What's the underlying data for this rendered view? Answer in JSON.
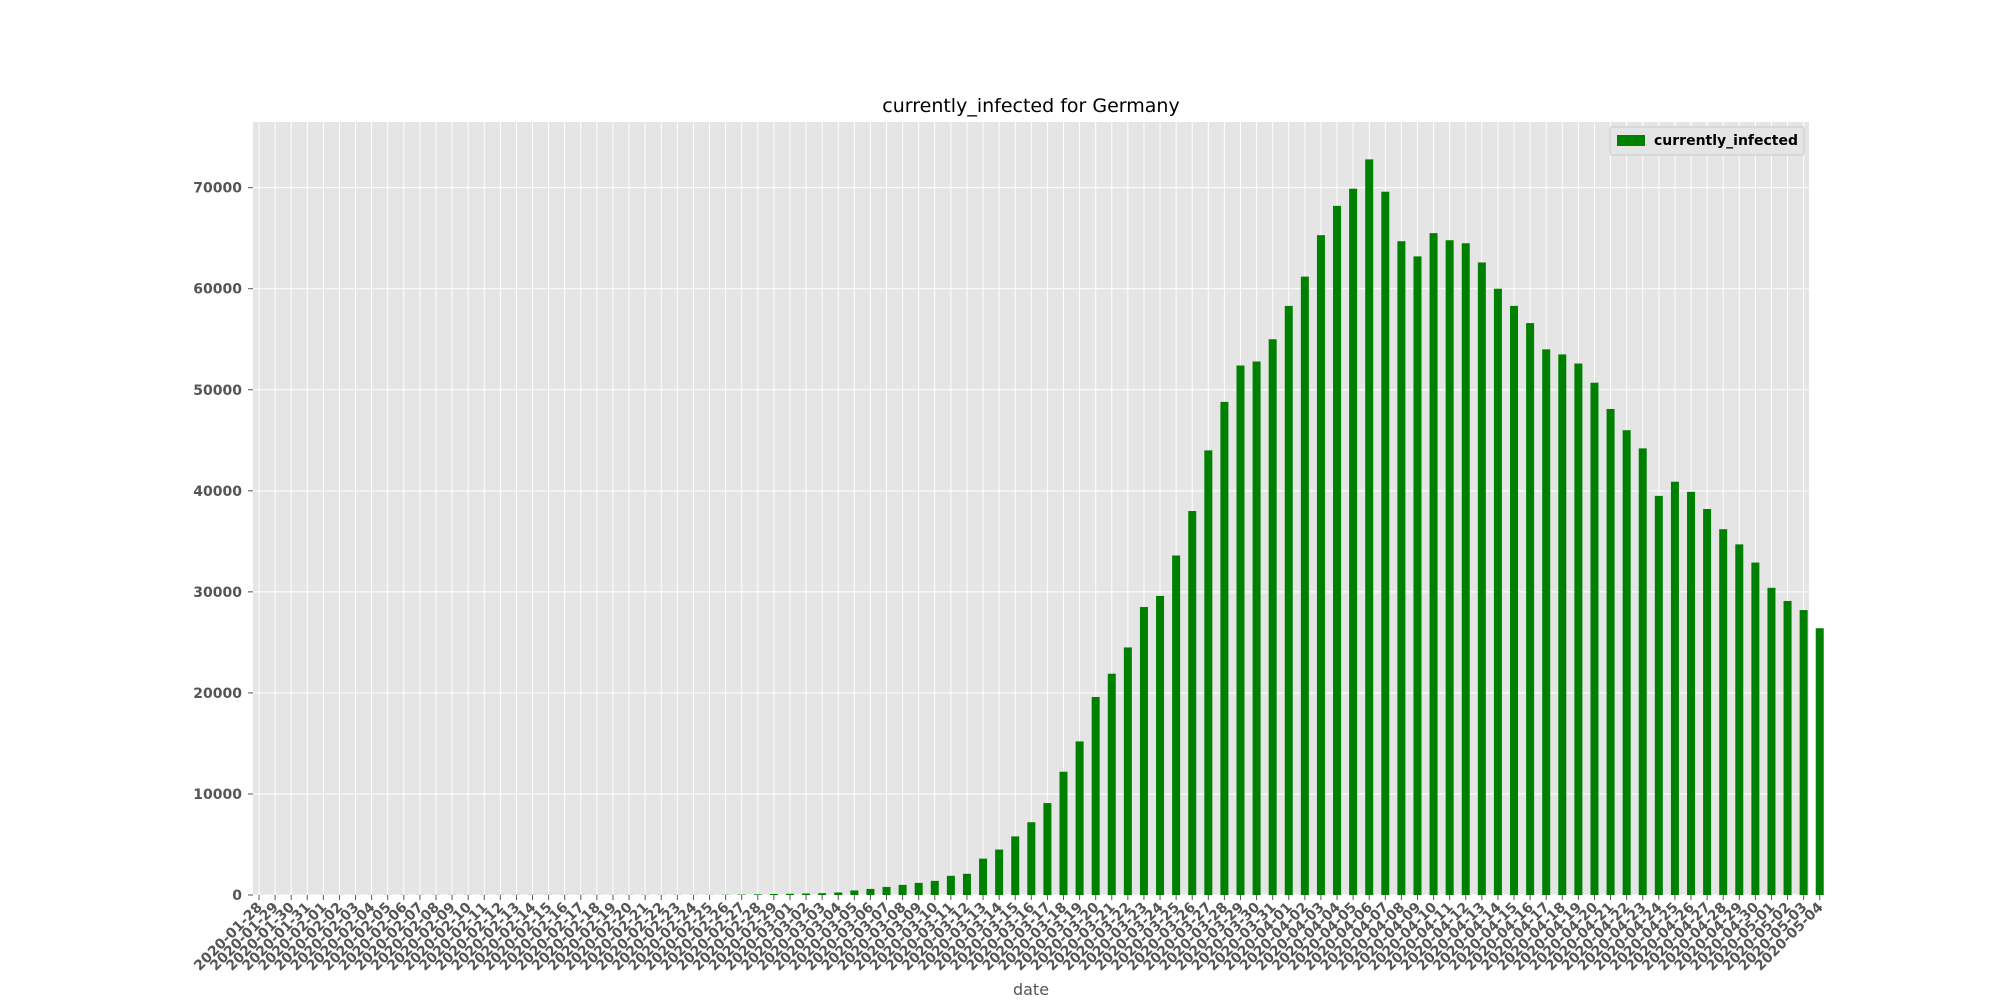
{
  "chart_data": {
    "type": "bar",
    "title": "currently_infected for Germany",
    "xlabel": "date",
    "ylabel": "",
    "ylim": [
      0,
      76500
    ],
    "yticks": [
      0,
      10000,
      20000,
      30000,
      40000,
      50000,
      60000,
      70000
    ],
    "grid": true,
    "legend_position": "top-right",
    "categories": [
      "2020-01-28",
      "2020-01-29",
      "2020-01-30",
      "2020-01-31",
      "2020-02-01",
      "2020-02-02",
      "2020-02-03",
      "2020-02-04",
      "2020-02-05",
      "2020-02-06",
      "2020-02-07",
      "2020-02-08",
      "2020-02-09",
      "2020-02-10",
      "2020-02-11",
      "2020-02-12",
      "2020-02-13",
      "2020-02-14",
      "2020-02-15",
      "2020-02-16",
      "2020-02-17",
      "2020-02-18",
      "2020-02-19",
      "2020-02-20",
      "2020-02-21",
      "2020-02-22",
      "2020-02-23",
      "2020-02-24",
      "2020-02-25",
      "2020-02-26",
      "2020-02-27",
      "2020-02-28",
      "2020-02-29",
      "2020-03-01",
      "2020-03-02",
      "2020-03-03",
      "2020-03-04",
      "2020-03-05",
      "2020-03-06",
      "2020-03-07",
      "2020-03-08",
      "2020-03-09",
      "2020-03-10",
      "2020-03-11",
      "2020-03-12",
      "2020-03-13",
      "2020-03-14",
      "2020-03-15",
      "2020-03-16",
      "2020-03-17",
      "2020-03-18",
      "2020-03-19",
      "2020-03-20",
      "2020-03-21",
      "2020-03-22",
      "2020-03-23",
      "2020-03-24",
      "2020-03-25",
      "2020-03-26",
      "2020-03-27",
      "2020-03-28",
      "2020-03-29",
      "2020-03-30",
      "2020-03-31",
      "2020-04-01",
      "2020-04-02",
      "2020-04-03",
      "2020-04-04",
      "2020-04-05",
      "2020-04-06",
      "2020-04-07",
      "2020-04-08",
      "2020-04-09",
      "2020-04-10",
      "2020-04-11",
      "2020-04-12",
      "2020-04-13",
      "2020-04-14",
      "2020-04-15",
      "2020-04-16",
      "2020-04-17",
      "2020-04-18",
      "2020-04-19",
      "2020-04-20",
      "2020-04-21",
      "2020-04-22",
      "2020-04-23",
      "2020-04-24",
      "2020-04-25",
      "2020-04-26",
      "2020-04-27",
      "2020-04-28",
      "2020-04-29",
      "2020-04-30",
      "2020-05-01",
      "2020-05-02",
      "2020-05-03",
      "2020-05-04"
    ],
    "series": [
      {
        "name": "currently_infected",
        "color": "#008000",
        "values": [
          4,
          4,
          4,
          5,
          7,
          8,
          10,
          12,
          12,
          12,
          13,
          13,
          14,
          14,
          14,
          15,
          15,
          15,
          15,
          15,
          15,
          15,
          15,
          15,
          15,
          15,
          15,
          14,
          15,
          25,
          40,
          60,
          100,
          120,
          150,
          180,
          250,
          450,
          600,
          800,
          1000,
          1200,
          1400,
          1900,
          2100,
          3600,
          4500,
          5800,
          7200,
          9100,
          12200,
          15200,
          19600,
          21900,
          24500,
          28500,
          29600,
          33600,
          38000,
          44000,
          48800,
          52400,
          52800,
          55000,
          58300,
          61200,
          65300,
          68200,
          69900,
          72800,
          69600,
          64700,
          63200,
          65500,
          64800,
          64500,
          62600,
          60000,
          58300,
          56600,
          54000,
          53500,
          52600,
          50700,
          48100,
          46000,
          44200,
          39500,
          40900,
          39900,
          38200,
          36200,
          34700,
          32900,
          30400,
          29100,
          28200,
          26400
        ]
      }
    ]
  }
}
